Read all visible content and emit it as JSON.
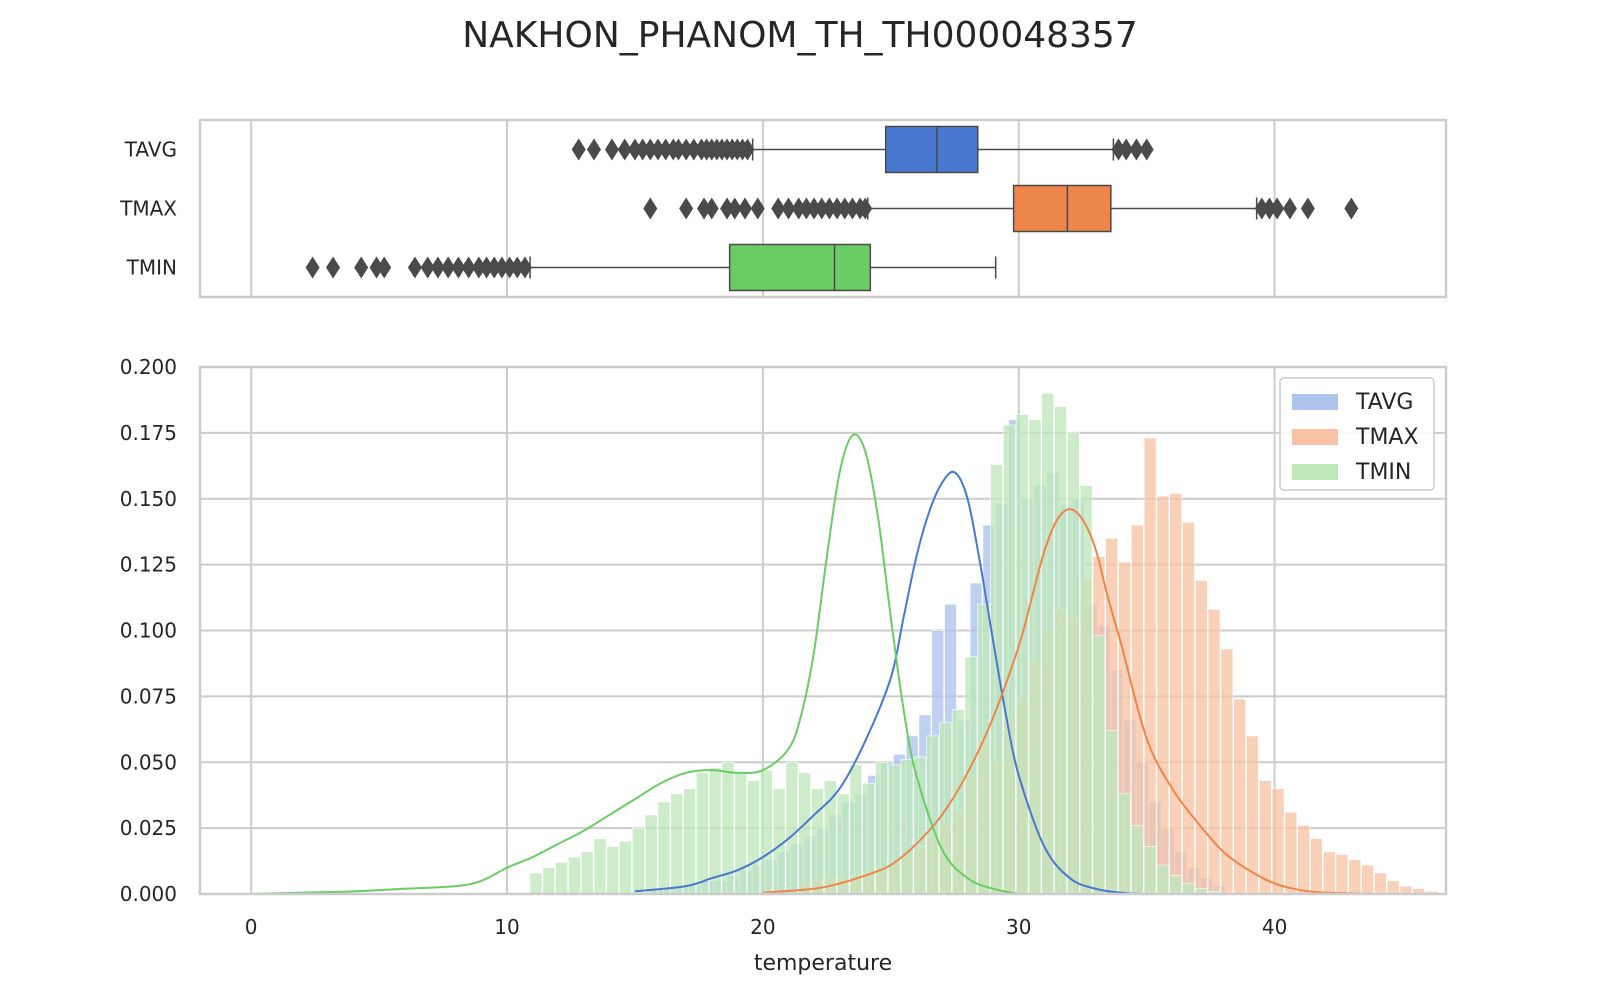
{
  "chart_data": {
    "type": "histogram+kde+boxplot",
    "title": "NAKHON_PHANOM_TH_TH000048357",
    "xlabel": "temperature",
    "ylabel": "",
    "xlim": [
      -2,
      46.7
    ],
    "ylim": [
      0,
      0.2
    ],
    "x_ticks": [
      "0",
      "10",
      "20",
      "30",
      "40"
    ],
    "y_ticks": [
      "0.000",
      "0.025",
      "0.050",
      "0.075",
      "0.100",
      "0.125",
      "0.150",
      "0.175",
      "0.200"
    ],
    "grid": true,
    "legend": {
      "position": "top-right"
    },
    "colors": {
      "TAVG": "#4878d0",
      "TMAX": "#ee854a",
      "TMIN": "#6acc64",
      "hist_TAVG": "#aec3ec",
      "hist_TMAX": "#f7c3a4",
      "hist_TMIN": "#bfe8bb",
      "outlier": "#4a4a4a",
      "grid": "#cccccc",
      "frame": "#cccccc"
    },
    "boxplots": [
      {
        "name": "TAVG",
        "q1": 24.8,
        "median": 26.8,
        "q3": 28.4,
        "whisker_low": 19.6,
        "whisker_high": 33.7,
        "outliers": [
          12.8,
          13.4,
          14.1,
          14.6,
          15.0,
          15.3,
          15.6,
          15.9,
          16.2,
          16.5,
          16.7,
          17.0,
          17.3,
          17.6,
          17.8,
          18.0,
          18.2,
          18.4,
          18.6,
          18.8,
          19.0,
          19.2,
          19.4,
          33.9,
          34.2,
          34.6,
          35.0
        ]
      },
      {
        "name": "TMAX",
        "q1": 29.8,
        "median": 31.9,
        "q3": 33.6,
        "whisker_low": 24.1,
        "whisker_high": 39.3,
        "outliers": [
          15.6,
          17.0,
          17.7,
          18.0,
          18.6,
          18.9,
          19.3,
          19.8,
          20.6,
          21.0,
          21.4,
          21.7,
          22.0,
          22.3,
          22.6,
          22.9,
          23.2,
          23.5,
          23.8,
          24.0,
          39.5,
          39.8,
          40.1,
          40.6,
          41.3,
          43.0
        ]
      },
      {
        "name": "TMIN",
        "q1": 18.7,
        "median": 22.8,
        "q3": 24.2,
        "whisker_low": 10.9,
        "whisker_high": 29.1,
        "outliers": [
          2.4,
          3.2,
          4.3,
          4.9,
          5.2,
          6.4,
          6.9,
          7.3,
          7.7,
          8.1,
          8.5,
          8.9,
          9.2,
          9.5,
          9.8,
          10.1,
          10.4,
          10.7
        ]
      }
    ],
    "series": [
      {
        "name": "TAVG",
        "bin_start": 15.6,
        "bin_width": 0.5,
        "hist": [
          0.002,
          0.002,
          0.003,
          0.003,
          0.005,
          0.005,
          0.007,
          0.009,
          0.011,
          0.013,
          0.016,
          0.019,
          0.022,
          0.025,
          0.03,
          0.035,
          0.038,
          0.045,
          0.05,
          0.053,
          0.06,
          0.068,
          0.1,
          0.11,
          0.066,
          0.118,
          0.14,
          0.148,
          0.18,
          0.15,
          0.155,
          0.16,
          0.148,
          0.15,
          0.11,
          0.102,
          0.085,
          0.066,
          0.05,
          0.035,
          0.025,
          0.016,
          0.01,
          0.006,
          0.003
        ],
        "kde_x": [
          15,
          17,
          18,
          19,
          20,
          21,
          22,
          23,
          24,
          25,
          25.5,
          26,
          26.5,
          27,
          27.5,
          28,
          28.5,
          29,
          29.5,
          30,
          31,
          32,
          33,
          34,
          35
        ],
        "kde_y": [
          0.001,
          0.003,
          0.006,
          0.009,
          0.014,
          0.021,
          0.03,
          0.04,
          0.058,
          0.082,
          0.105,
          0.128,
          0.145,
          0.156,
          0.16,
          0.15,
          0.125,
          0.096,
          0.068,
          0.045,
          0.018,
          0.006,
          0.002,
          0.0005,
          0.0
        ]
      },
      {
        "name": "TMAX",
        "bin_start": 21.4,
        "bin_width": 0.5,
        "hist": [
          0.004,
          0.005,
          0.006,
          0.006,
          0.007,
          0.008,
          0.01,
          0.012,
          0.015,
          0.018,
          0.022,
          0.026,
          0.032,
          0.045,
          0.058,
          0.05,
          0.068,
          0.075,
          0.088,
          0.1,
          0.108,
          0.105,
          0.12,
          0.128,
          0.135,
          0.126,
          0.14,
          0.173,
          0.151,
          0.152,
          0.141,
          0.119,
          0.108,
          0.093,
          0.074,
          0.06,
          0.043,
          0.04,
          0.031,
          0.026,
          0.021,
          0.016,
          0.015,
          0.013,
          0.011,
          0.008,
          0.005,
          0.003,
          0.002,
          0.001
        ],
        "kde_x": [
          20,
          22,
          23,
          24,
          25,
          26,
          27,
          28,
          29,
          30,
          30.5,
          31,
          31.5,
          32,
          32.5,
          33,
          33.5,
          34,
          35,
          36,
          37,
          38,
          39,
          40,
          41,
          42,
          44
        ],
        "kde_y": [
          0.0005,
          0.002,
          0.004,
          0.007,
          0.011,
          0.019,
          0.03,
          0.046,
          0.067,
          0.094,
          0.112,
          0.13,
          0.142,
          0.146,
          0.142,
          0.131,
          0.112,
          0.095,
          0.059,
          0.04,
          0.027,
          0.016,
          0.009,
          0.004,
          0.0015,
          0.0005,
          0.0
        ]
      },
      {
        "name": "TMIN",
        "bin_start": 10.9,
        "bin_width": 0.5,
        "hist": [
          0.008,
          0.01,
          0.012,
          0.014,
          0.016,
          0.021,
          0.018,
          0.02,
          0.025,
          0.03,
          0.035,
          0.038,
          0.04,
          0.046,
          0.048,
          0.05,
          0.046,
          0.043,
          0.047,
          0.04,
          0.05,
          0.046,
          0.04,
          0.043,
          0.038,
          0.049,
          0.042,
          0.05,
          0.049,
          0.051,
          0.052,
          0.06,
          0.065,
          0.07,
          0.09,
          0.11,
          0.163,
          0.178,
          0.182,
          0.18,
          0.19,
          0.185,
          0.175,
          0.155,
          0.098,
          0.062,
          0.038,
          0.026,
          0.018,
          0.011,
          0.007,
          0.004,
          0.002,
          0.001
        ],
        "kde_x": [
          0,
          2,
          4,
          6,
          8,
          9,
          10,
          11,
          12,
          13,
          14,
          15,
          16,
          17,
          18,
          19,
          20,
          21,
          21.5,
          22,
          22.5,
          23,
          23.5,
          24,
          24.5,
          25,
          25.5,
          26,
          27,
          28,
          29,
          30
        ],
        "kde_y": [
          0.0,
          0.0005,
          0.001,
          0.002,
          0.003,
          0.005,
          0.01,
          0.014,
          0.019,
          0.024,
          0.03,
          0.036,
          0.042,
          0.046,
          0.047,
          0.046,
          0.047,
          0.055,
          0.068,
          0.092,
          0.128,
          0.16,
          0.174,
          0.168,
          0.143,
          0.105,
          0.07,
          0.045,
          0.017,
          0.006,
          0.002,
          0.0
        ]
      }
    ]
  }
}
